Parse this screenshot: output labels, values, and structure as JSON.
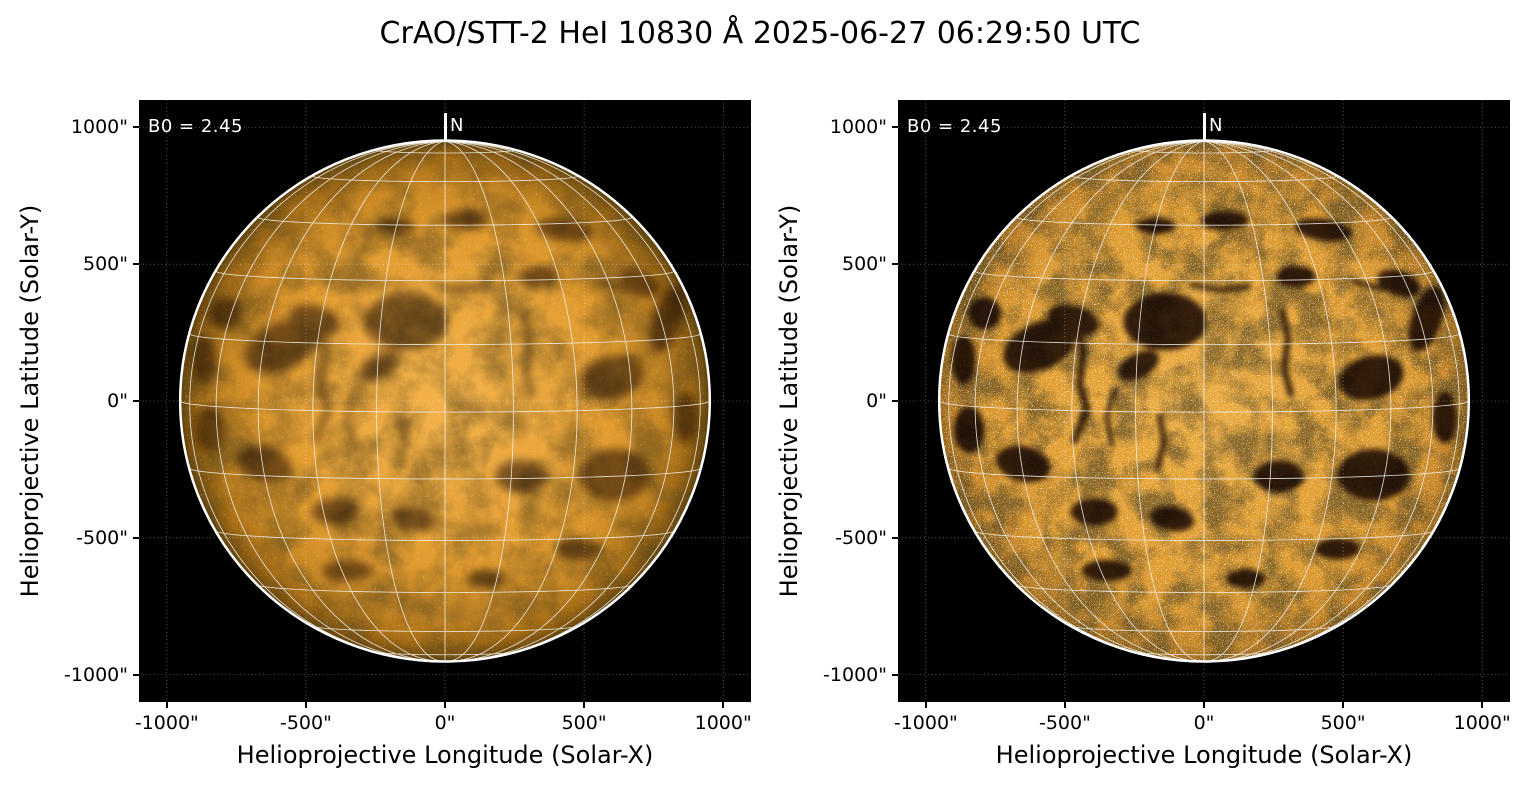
{
  "title": "CrAO/STT-2 HeI 10830 Å 2025-06-27 06:29:50 UTC",
  "chart_data": {
    "type": "heatmap",
    "description": "Full-disk solar HeI 10830 Å filtergram shown in two panels: left = standard display, right = contrast-enhanced display",
    "xlabel": "Helioprojective Longitude (Solar-X)",
    "ylabel": "Helioprojective Latitude (Solar-Y)",
    "xlim": [
      -1100,
      1100
    ],
    "ylim": [
      -1100,
      1100
    ],
    "tick_values": [
      -1000,
      -500,
      0,
      500,
      1000
    ],
    "xtick_labels": [
      "-1000\"",
      "-500\"",
      "0\"",
      "500\"",
      "1000\""
    ],
    "ytick_labels": [
      "-1000\"",
      "-500\"",
      "0\"",
      "500\"",
      "1000\""
    ],
    "grid_style": "dotted",
    "legend_position": "none",
    "background_color": "#000000",
    "figure_grid_color": "#ffffff",
    "helio_grid_color": "#f4f1e8",
    "limb_color": "#ffffff",
    "solar_radius_arcsec": 950,
    "b0_deg": 2.45,
    "heliographic_grid_step_deg": 15,
    "panels": [
      {
        "name": "standard",
        "b0_label": "B0 = 2.45",
        "north_label": "N",
        "disk_gradient": [
          [
            "0%",
            "#f4b24a"
          ],
          [
            "40%",
            "#eaa63c"
          ],
          [
            "65%",
            "#e09a2e"
          ],
          [
            "82%",
            "#c98824"
          ],
          [
            "92%",
            "#a56d16"
          ],
          [
            "97%",
            "#7c520f"
          ],
          [
            "100%",
            "#4a3608"
          ]
        ],
        "speckle": {
          "freq": 0.15,
          "octaves": 2,
          "gain": 1.7,
          "bias": -2.9,
          "opacity": 0.3,
          "seed": 11
        },
        "mottle": {
          "freq": 0.0075,
          "octaves": 4,
          "gain": 1.4,
          "bias": -1.75,
          "opacity": 0.5,
          "seed": 5
        },
        "feature_opacity": 0.5,
        "feature_blur": 16
      },
      {
        "name": "enhanced",
        "b0_label": "B0 = 2.45",
        "north_label": "N",
        "disk_gradient": [
          [
            "0%",
            "#eaa93c"
          ],
          [
            "55%",
            "#e29d2e"
          ],
          [
            "80%",
            "#d89428"
          ],
          [
            "93%",
            "#c28020"
          ],
          [
            "100%",
            "#8a5c12"
          ]
        ],
        "speckle": {
          "freq": 0.22,
          "octaves": 2,
          "gain": 2.0,
          "bias": -3.05,
          "opacity": 0.7,
          "seed": 7
        },
        "mottle": {
          "freq": 0.009,
          "octaves": 4,
          "gain": 1.8,
          "bias": -2.3,
          "opacity": 0.65,
          "seed": 3
        },
        "feature_opacity": 0.82,
        "feature_blur": 10
      }
    ],
    "features": {
      "blobs": [
        [
          -590,
          200,
          140,
          85,
          -25
        ],
        [
          -470,
          295,
          95,
          55,
          15
        ],
        [
          -140,
          290,
          150,
          105,
          0
        ],
        [
          -235,
          130,
          80,
          45,
          -30
        ],
        [
          75,
          660,
          85,
          35,
          0
        ],
        [
          430,
          625,
          105,
          40,
          8
        ],
        [
          -175,
          640,
          70,
          30,
          0
        ],
        [
          600,
          85,
          120,
          80,
          -15
        ],
        [
          610,
          -270,
          130,
          95,
          0
        ],
        [
          270,
          -275,
          90,
          60,
          0
        ],
        [
          -650,
          -230,
          100,
          65,
          15
        ],
        [
          -845,
          -105,
          55,
          85,
          0
        ],
        [
          800,
          300,
          55,
          125,
          18
        ],
        [
          -395,
          -405,
          85,
          50,
          0
        ],
        [
          -115,
          -430,
          80,
          45,
          10
        ],
        [
          -350,
          -620,
          90,
          40,
          0
        ],
        [
          150,
          -650,
          70,
          35,
          0
        ],
        [
          480,
          -540,
          80,
          40,
          0
        ],
        [
          865,
          -60,
          45,
          95,
          0
        ],
        [
          -865,
          150,
          45,
          90,
          0
        ],
        [
          -790,
          320,
          60,
          60,
          0
        ],
        [
          330,
          455,
          70,
          40,
          0
        ],
        [
          700,
          430,
          80,
          45,
          20
        ]
      ],
      "filaments": [
        {
          "pts": [
            [
              -460,
              310
            ],
            [
              -435,
              180
            ],
            [
              -448,
              60
            ],
            [
              -420,
              -30
            ],
            [
              -465,
              -145
            ]
          ],
          "w": 24
        },
        {
          "pts": [
            [
              280,
              330
            ],
            [
              302,
              230
            ],
            [
              288,
              120
            ],
            [
              312,
              25
            ]
          ],
          "w": 22
        },
        {
          "pts": [
            [
              -160,
              -55
            ],
            [
              -142,
              -150
            ],
            [
              -168,
              -245
            ]
          ],
          "w": 20
        },
        {
          "pts": [
            [
              -40,
              425
            ],
            [
              60,
              405
            ],
            [
              160,
              418
            ]
          ],
          "w": 18
        },
        {
          "pts": [
            [
              540,
              435
            ],
            [
              650,
              408
            ]
          ],
          "w": 18
        },
        {
          "pts": [
            [
              -320,
              40
            ],
            [
              -350,
              -60
            ],
            [
              -330,
              -160
            ]
          ],
          "w": 16
        }
      ]
    }
  }
}
